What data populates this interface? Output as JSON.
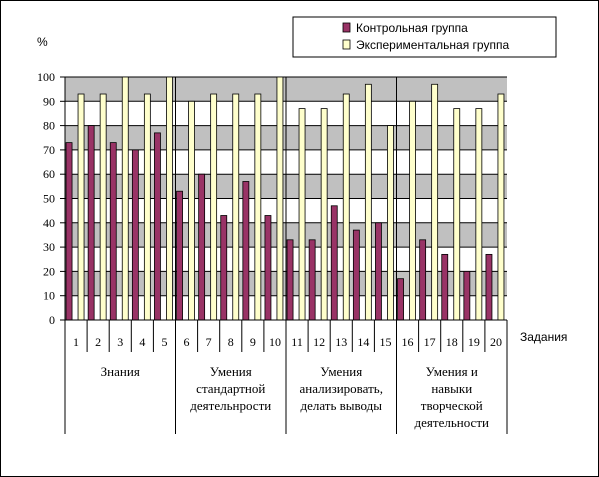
{
  "chart_data": {
    "type": "bar",
    "ylabel": "%",
    "xlabel": "Задания",
    "ylim": [
      0,
      100
    ],
    "yticks": [
      0,
      10,
      20,
      30,
      40,
      50,
      60,
      70,
      80,
      90,
      100
    ],
    "grid": true,
    "legend_position": "top-right",
    "categories": [
      "1",
      "2",
      "3",
      "4",
      "5",
      "6",
      "7",
      "8",
      "9",
      "10",
      "11",
      "12",
      "13",
      "14",
      "15",
      "16",
      "17",
      "18",
      "19",
      "20"
    ],
    "groups": [
      {
        "label": [
          "Знания"
        ],
        "categories": [
          "1",
          "2",
          "3",
          "4",
          "5"
        ]
      },
      {
        "label": [
          "Умения",
          "стандартной",
          "деятельнрости"
        ],
        "categories": [
          "6",
          "7",
          "8",
          "9",
          "10"
        ]
      },
      {
        "label": [
          "Умения",
          "анализировать,",
          "делать выводы"
        ],
        "categories": [
          "11",
          "12",
          "13",
          "14",
          "15"
        ]
      },
      {
        "label": [
          "Умения и",
          "навыки",
          "творческой",
          "деятельности"
        ],
        "categories": [
          "16",
          "17",
          "18",
          "19",
          "20"
        ]
      }
    ],
    "series": [
      {
        "name": "Контрольная группа",
        "color": "#993366",
        "values": [
          73,
          80,
          73,
          70,
          77,
          53,
          60,
          43,
          57,
          43,
          33,
          33,
          47,
          37,
          40,
          17,
          33,
          27,
          20,
          27
        ]
      },
      {
        "name": "Экспериментальная группа",
        "color": "#ffffcc",
        "values": [
          93,
          93,
          100,
          93,
          100,
          90,
          93,
          93,
          93,
          100,
          87,
          87,
          93,
          97,
          80,
          90,
          97,
          87,
          87,
          93
        ]
      }
    ],
    "colors": {
      "plot_band": "#c0c0c0",
      "plot_band_alt": "#ffffff",
      "grid": "#000000"
    }
  }
}
